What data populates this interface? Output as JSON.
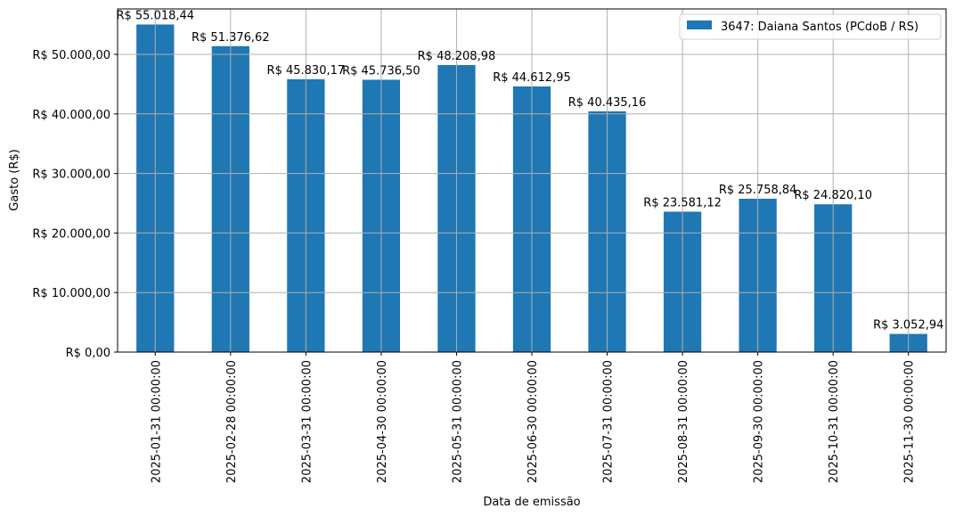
{
  "chart_data": {
    "type": "bar",
    "title": "",
    "xlabel": "Data de emissão",
    "ylabel": "Gasto (R$)",
    "ylim": [
      0,
      57800
    ],
    "grid": true,
    "legend_position": "upper right",
    "categories": [
      "2025-01-31 00:00:00",
      "2025-02-28 00:00:00",
      "2025-03-31 00:00:00",
      "2025-04-30 00:00:00",
      "2025-05-31 00:00:00",
      "2025-06-30 00:00:00",
      "2025-07-31 00:00:00",
      "2025-08-31 00:00:00",
      "2025-09-30 00:00:00",
      "2025-10-31 00:00:00",
      "2025-11-30 00:00:00"
    ],
    "series": [
      {
        "name": "3647: Daiana Santos (PCdoB / RS)",
        "color": "#1f77b4",
        "values": [
          55018.44,
          51376.62,
          45830.17,
          45736.5,
          48208.98,
          44612.95,
          40435.16,
          23581.12,
          25758.84,
          24820.1,
          3052.94
        ],
        "labels": [
          "R$ 55.018,44",
          "R$ 51.376,62",
          "R$ 45.830,17",
          "R$ 45.736,50",
          "R$ 48.208,98",
          "R$ 44.612,95",
          "R$ 40.435,16",
          "R$ 23.581,12",
          "R$ 25.758,84",
          "R$ 24.820,10",
          "R$ 3.052,94"
        ]
      }
    ],
    "yticks": [
      0,
      10000,
      20000,
      30000,
      40000,
      50000
    ],
    "ytick_labels": [
      "R$ 0,00",
      "R$ 10.000,00",
      "R$ 20.000,00",
      "R$ 30.000,00",
      "R$ 40.000,00",
      "R$ 50.000,00"
    ]
  }
}
